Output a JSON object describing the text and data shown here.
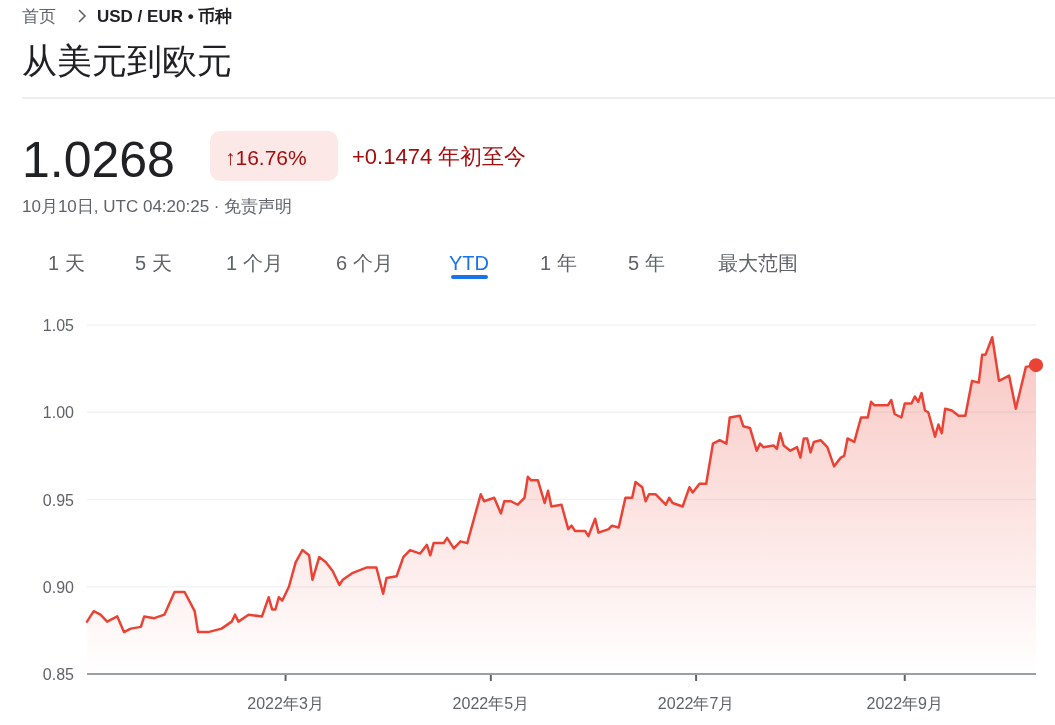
{
  "chart_data": {
    "type": "area",
    "title": "从美元到欧元",
    "annotations": [
      "首页",
      "USD / EUR • 币种",
      "1.0268",
      "↑16.76%",
      "+0.1474 年初至今",
      "10月10日, UTC 04:20:25 · 免责声明",
      "1 天",
      "5 天",
      "1 个月",
      "6 个月",
      "YTD",
      "1 年",
      "5 年",
      "最大范围"
    ],
    "xlim": [
      "2022-01-01",
      "2022-10-10"
    ],
    "xticks": [
      {
        "value": "2022-03-01",
        "label": "2022年3月"
      },
      {
        "value": "2022-05-01",
        "label": "2022年5月"
      },
      {
        "value": "2022-07-01",
        "label": "2022年7月"
      },
      {
        "value": "2022-09-01",
        "label": "2022年9月"
      }
    ],
    "ylim": [
      0.85,
      1.05
    ],
    "yticks": [
      {
        "value": 0.85,
        "label": "0.85"
      },
      {
        "value": 0.9,
        "label": "0.90"
      },
      {
        "value": 0.95,
        "label": "0.95"
      },
      {
        "value": 1.0,
        "label": "1.00"
      },
      {
        "value": 1.05,
        "label": "1.05"
      }
    ],
    "grid": "y",
    "series": [
      {
        "color": "#ea4335",
        "x": [
          "2022-01-01",
          "2022-01-03",
          "2022-01-05",
          "2022-01-07",
          "2022-01-10",
          "2022-01-12",
          "2022-01-14",
          "2022-01-17",
          "2022-01-18",
          "2022-01-21",
          "2022-01-24",
          "2022-01-27",
          "2022-01-30",
          "2022-02-02",
          "2022-02-03",
          "2022-02-06",
          "2022-02-10",
          "2022-02-13",
          "2022-02-14",
          "2022-02-15",
          "2022-02-18",
          "2022-02-22",
          "2022-02-24",
          "2022-02-25",
          "2022-02-26",
          "2022-02-27",
          "2022-02-28",
          "2022-03-02",
          "2022-03-04",
          "2022-03-06",
          "2022-03-08",
          "2022-03-09",
          "2022-03-11",
          "2022-03-13",
          "2022-03-15",
          "2022-03-17",
          "2022-03-18",
          "2022-03-21",
          "2022-03-25",
          "2022-03-28",
          "2022-03-30",
          "2022-03-31",
          "2022-04-03",
          "2022-04-05",
          "2022-04-07",
          "2022-04-10",
          "2022-04-12",
          "2022-04-13",
          "2022-04-14",
          "2022-04-17",
          "2022-04-18",
          "2022-04-20",
          "2022-04-22",
          "2022-04-24",
          "2022-04-28",
          "2022-04-29",
          "2022-05-02",
          "2022-05-04",
          "2022-05-05",
          "2022-05-07",
          "2022-05-09",
          "2022-05-11",
          "2022-05-12",
          "2022-05-13",
          "2022-05-15",
          "2022-05-17",
          "2022-05-18",
          "2022-05-19",
          "2022-05-22",
          "2022-05-24",
          "2022-05-25",
          "2022-05-26",
          "2022-05-29",
          "2022-05-30",
          "2022-06-01",
          "2022-06-02",
          "2022-06-05",
          "2022-06-06",
          "2022-06-08",
          "2022-06-10",
          "2022-06-12",
          "2022-06-13",
          "2022-06-15",
          "2022-06-16",
          "2022-06-17",
          "2022-06-19",
          "2022-06-22",
          "2022-06-23",
          "2022-06-24",
          "2022-06-27",
          "2022-06-29",
          "2022-06-30",
          "2022-07-02",
          "2022-07-04",
          "2022-07-06",
          "2022-07-08",
          "2022-07-10",
          "2022-07-11",
          "2022-07-14",
          "2022-07-15",
          "2022-07-17",
          "2022-07-19",
          "2022-07-20",
          "2022-07-21",
          "2022-07-24",
          "2022-07-25",
          "2022-07-26",
          "2022-07-27",
          "2022-07-29",
          "2022-07-31",
          "2022-08-01",
          "2022-08-02",
          "2022-08-03",
          "2022-08-04",
          "2022-08-05",
          "2022-08-07",
          "2022-08-09",
          "2022-08-11",
          "2022-08-13",
          "2022-08-14",
          "2022-08-15",
          "2022-08-17",
          "2022-08-19",
          "2022-08-21",
          "2022-08-22",
          "2022-08-23",
          "2022-08-27",
          "2022-08-28",
          "2022-08-29",
          "2022-08-31",
          "2022-09-01",
          "2022-09-03",
          "2022-09-04",
          "2022-09-05",
          "2022-09-06",
          "2022-09-07",
          "2022-09-08",
          "2022-09-10",
          "2022-09-11",
          "2022-09-12",
          "2022-09-13",
          "2022-09-15",
          "2022-09-17",
          "2022-09-19",
          "2022-09-21",
          "2022-09-23",
          "2022-09-24",
          "2022-09-25",
          "2022-09-27",
          "2022-09-29",
          "2022-10-01",
          "2022-10-02",
          "2022-10-04",
          "2022-10-07",
          "2022-10-10"
        ],
        "values": [
          0.88,
          0.886,
          0.884,
          0.88,
          0.883,
          0.874,
          0.876,
          0.877,
          0.883,
          0.882,
          0.884,
          0.897,
          0.897,
          0.886,
          0.874,
          0.874,
          0.876,
          0.88,
          0.884,
          0.88,
          0.884,
          0.883,
          0.894,
          0.887,
          0.887,
          0.894,
          0.892,
          0.9,
          0.914,
          0.921,
          0.918,
          0.904,
          0.917,
          0.914,
          0.909,
          0.901,
          0.904,
          0.908,
          0.911,
          0.911,
          0.896,
          0.905,
          0.906,
          0.917,
          0.921,
          0.919,
          0.924,
          0.918,
          0.925,
          0.925,
          0.928,
          0.922,
          0.926,
          0.925,
          0.953,
          0.949,
          0.951,
          0.942,
          0.949,
          0.949,
          0.947,
          0.951,
          0.963,
          0.961,
          0.961,
          0.948,
          0.955,
          0.946,
          0.947,
          0.933,
          0.935,
          0.932,
          0.932,
          0.929,
          0.939,
          0.931,
          0.933,
          0.935,
          0.934,
          0.951,
          0.951,
          0.96,
          0.957,
          0.949,
          0.953,
          0.953,
          0.947,
          0.951,
          0.948,
          0.946,
          0.957,
          0.954,
          0.959,
          0.959,
          0.982,
          0.984,
          0.982,
          0.997,
          0.998,
          0.992,
          0.991,
          0.978,
          0.982,
          0.98,
          0.981,
          0.979,
          0.988,
          0.981,
          0.978,
          0.98,
          0.974,
          0.985,
          0.985,
          0.977,
          0.983,
          0.984,
          0.98,
          0.969,
          0.974,
          0.975,
          0.985,
          0.983,
          0.997,
          0.997,
          1.006,
          1.004,
          1.004,
          1.007,
          0.999,
          0.997,
          1.005,
          1.005,
          1.009,
          1.006,
          1.011,
          1.001,
          1.0,
          0.986,
          0.993,
          0.988,
          1.002,
          1.001,
          0.998,
          0.998,
          1.018,
          1.017,
          1.033,
          1.033,
          1.043,
          1.018,
          1.02,
          1.021,
          1.002,
          1.026,
          1.027
        ]
      },
      {
        "type": "scatter",
        "color": "#ea4335",
        "marker": "circle",
        "x": [
          "2022-10-10"
        ],
        "values": [
          1.027
        ]
      }
    ]
  }
}
